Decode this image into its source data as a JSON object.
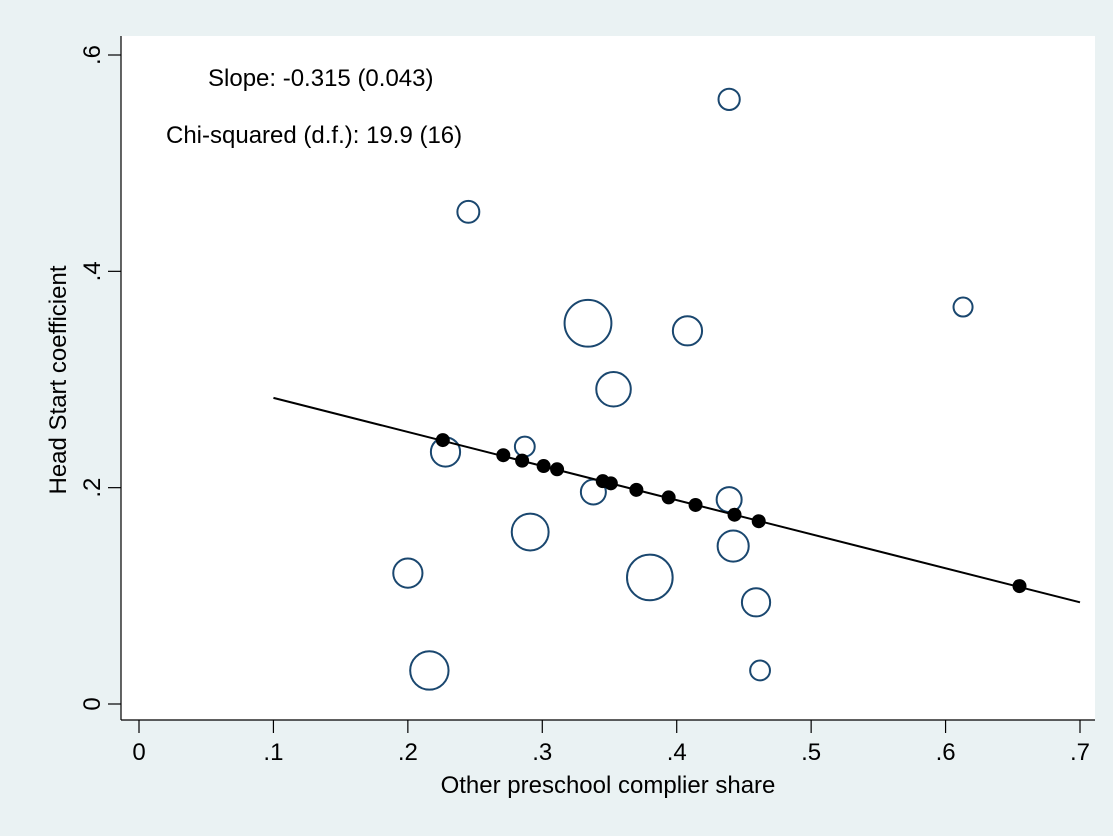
{
  "chart_data": {
    "type": "scatter",
    "xlabel": "Other preschool complier share",
    "ylabel": "Head Start coefficient",
    "xlim": [
      0,
      0.7
    ],
    "ylim": [
      0,
      0.6
    ],
    "x_ticks": [
      0,
      0.1,
      0.2,
      0.3,
      0.4,
      0.5,
      0.6,
      0.7
    ],
    "x_tick_labels": [
      "0",
      ".1",
      ".2",
      ".3",
      ".4",
      ".5",
      ".6",
      ".7"
    ],
    "y_ticks": [
      0,
      0.2,
      0.4,
      0.6
    ],
    "y_tick_labels": [
      "0",
      ".2",
      ".4",
      ".6"
    ],
    "grid": false,
    "annotations": {
      "slope": "Slope: -0.315 (0.043)",
      "chi_squared": "Chi-squared (d.f.): 19.9 (16)"
    },
    "fit_line": {
      "x": [
        0.1,
        0.7
      ],
      "y": [
        0.283,
        0.094
      ]
    },
    "series": [
      {
        "style": "hollow-circle",
        "color": "#1a476f",
        "points": [
          {
            "x": 0.439,
            "y": 0.559,
            "size": 0.7
          },
          {
            "x": 0.245,
            "y": 0.455,
            "size": 0.75
          },
          {
            "x": 0.613,
            "y": 0.367,
            "size": 0.55
          },
          {
            "x": 0.334,
            "y": 0.352,
            "size": 3.8
          },
          {
            "x": 0.408,
            "y": 0.345,
            "size": 1.4
          },
          {
            "x": 0.353,
            "y": 0.291,
            "size": 2.0
          },
          {
            "x": 0.287,
            "y": 0.238,
            "size": 0.6
          },
          {
            "x": 0.228,
            "y": 0.233,
            "size": 1.4
          },
          {
            "x": 0.338,
            "y": 0.196,
            "size": 1.0
          },
          {
            "x": 0.439,
            "y": 0.189,
            "size": 1.0
          },
          {
            "x": 0.291,
            "y": 0.159,
            "size": 2.3
          },
          {
            "x": 0.442,
            "y": 0.146,
            "size": 1.6
          },
          {
            "x": 0.2,
            "y": 0.121,
            "size": 1.4
          },
          {
            "x": 0.38,
            "y": 0.117,
            "size": 3.6
          },
          {
            "x": 0.459,
            "y": 0.094,
            "size": 1.3
          },
          {
            "x": 0.216,
            "y": 0.031,
            "size": 2.5
          },
          {
            "x": 0.462,
            "y": 0.031,
            "size": 0.6
          }
        ]
      },
      {
        "style": "filled-dot",
        "color": "#000000",
        "points": [
          {
            "x": 0.226,
            "y": 0.244
          },
          {
            "x": 0.271,
            "y": 0.23
          },
          {
            "x": 0.285,
            "y": 0.225
          },
          {
            "x": 0.301,
            "y": 0.22
          },
          {
            "x": 0.311,
            "y": 0.217
          },
          {
            "x": 0.345,
            "y": 0.206
          },
          {
            "x": 0.351,
            "y": 0.204
          },
          {
            "x": 0.37,
            "y": 0.198
          },
          {
            "x": 0.394,
            "y": 0.191
          },
          {
            "x": 0.414,
            "y": 0.184
          },
          {
            "x": 0.443,
            "y": 0.175
          },
          {
            "x": 0.461,
            "y": 0.169
          },
          {
            "x": 0.655,
            "y": 0.109
          }
        ]
      }
    ]
  }
}
